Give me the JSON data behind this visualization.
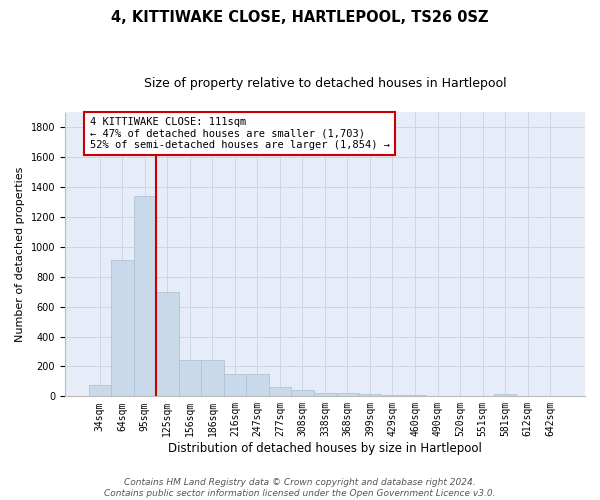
{
  "title": "4, KITTIWAKE CLOSE, HARTLEPOOL, TS26 0SZ",
  "subtitle": "Size of property relative to detached houses in Hartlepool",
  "xlabel": "Distribution of detached houses by size in Hartlepool",
  "ylabel": "Number of detached properties",
  "footer_line1": "Contains HM Land Registry data © Crown copyright and database right 2024.",
  "footer_line2": "Contains public sector information licensed under the Open Government Licence v3.0.",
  "categories": [
    "34sqm",
    "64sqm",
    "95sqm",
    "125sqm",
    "156sqm",
    "186sqm",
    "216sqm",
    "247sqm",
    "277sqm",
    "308sqm",
    "338sqm",
    "368sqm",
    "399sqm",
    "429sqm",
    "460sqm",
    "490sqm",
    "520sqm",
    "551sqm",
    "581sqm",
    "612sqm",
    "642sqm"
  ],
  "values": [
    75,
    910,
    1340,
    700,
    245,
    245,
    150,
    150,
    65,
    40,
    25,
    20,
    15,
    10,
    10,
    5,
    0,
    0,
    15,
    0,
    0
  ],
  "bar_color": "#c9d9ea",
  "bar_edgecolor": "#a8bfd4",
  "grid_color": "#cdd5e5",
  "background_color": "#e6ecf8",
  "vline_color": "#cc0000",
  "vline_pos": 2.5,
  "annotation_text": "4 KITTIWAKE CLOSE: 111sqm\n← 47% of detached houses are smaller (1,703)\n52% of semi-detached houses are larger (1,854) →",
  "ylim": [
    0,
    1900
  ],
  "yticks": [
    0,
    200,
    400,
    600,
    800,
    1000,
    1200,
    1400,
    1600,
    1800
  ],
  "title_fontsize": 10.5,
  "subtitle_fontsize": 9,
  "xlabel_fontsize": 8.5,
  "ylabel_fontsize": 8,
  "tick_fontsize": 7,
  "annotation_fontsize": 7.5,
  "footer_fontsize": 6.5
}
